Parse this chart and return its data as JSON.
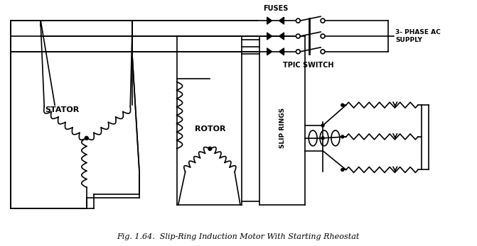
{
  "title": "Fig. 1.64.  Slip-Ring Induction Motor With Starting Rheostat",
  "background_color": "#ffffff",
  "line_color": "#000000",
  "labels": {
    "stator": "STATOR",
    "rotor": "ROTOR",
    "fuses": "FUSES",
    "tpic": "TPIC SWITCH",
    "slip_rings": "SLIP RINGS",
    "supply": "3- PHASE AC\nSUPPLY"
  },
  "figsize": [
    6.71,
    3.47
  ],
  "dpi": 100
}
